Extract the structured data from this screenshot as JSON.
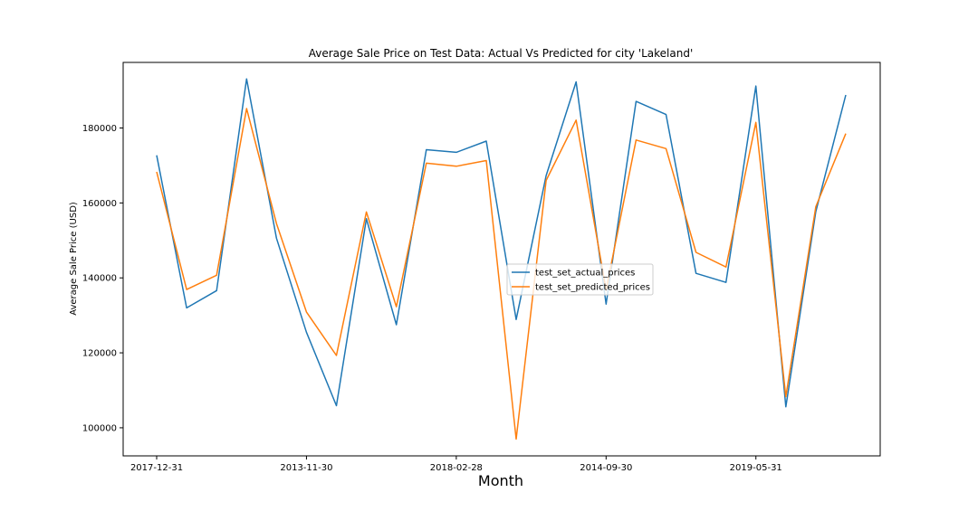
{
  "chart_data": {
    "type": "line",
    "title": "Average Sale Price on Test Data: Actual Vs Predicted for city 'Lakeland'",
    "xlabel": "Month",
    "ylabel": "Average Sale Price (USD)",
    "x_tick_labels": [
      "2017-12-31",
      "2013-11-30",
      "2018-02-28",
      "2014-09-30",
      "2019-05-31"
    ],
    "x_tick_indices": [
      0,
      5,
      10,
      15,
      20
    ],
    "ylim": [
      92500,
      197500
    ],
    "y_ticks": [
      100000,
      120000,
      140000,
      160000,
      180000
    ],
    "legend_position": "center-right",
    "series": [
      {
        "name": "test_set_actual_prices",
        "color": "#1f77b4",
        "values": [
          172700,
          132000,
          136600,
          193100,
          150600,
          125500,
          105900,
          155800,
          127500,
          174200,
          173500,
          176500,
          128900,
          167300,
          192300,
          133000,
          187100,
          183600,
          141200,
          138800,
          191200,
          105600,
          157700,
          188800
        ]
      },
      {
        "name": "test_set_predicted_prices",
        "color": "#ff7f0e",
        "values": [
          168300,
          136900,
          140700,
          185200,
          154500,
          130900,
          119300,
          157600,
          132300,
          170600,
          169800,
          171300,
          97000,
          166000,
          182100,
          136800,
          176800,
          174500,
          146800,
          142900,
          181500,
          108300,
          159000,
          178500
        ]
      }
    ]
  }
}
